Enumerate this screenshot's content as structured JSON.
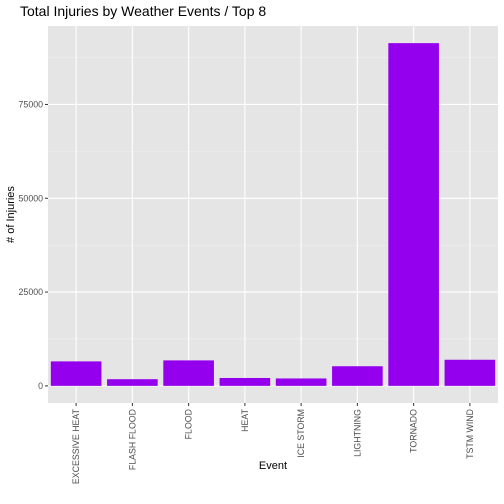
{
  "chart_data": {
    "type": "bar",
    "title": "Total Injuries by Weather Events / Top 8",
    "xlabel": "Event",
    "ylabel": "# of Injuries",
    "categories": [
      "EXCESSIVE HEAT",
      "FLASH FLOOD",
      "FLOOD",
      "HEAT",
      "ICE STORM",
      "LIGHTNING",
      "TORNADO",
      "TSTM WIND"
    ],
    "values": [
      6525,
      1777,
      6789,
      2100,
      1975,
      5230,
      91346,
      6957
    ],
    "ylim": [
      -4567,
      95913
    ],
    "yticks": [
      0,
      25000,
      50000,
      75000
    ],
    "ytick_labels": [
      "0",
      "25000",
      "50000",
      "75000"
    ],
    "grid": true,
    "legend": "none",
    "colors": {
      "bar": "#9400EE",
      "panel": "#E5E5E5",
      "grid_major": "#FFFFFF",
      "grid_minor": "#F0F0F0",
      "tick": "#333333",
      "tick_text": "#4D4D4D"
    }
  }
}
